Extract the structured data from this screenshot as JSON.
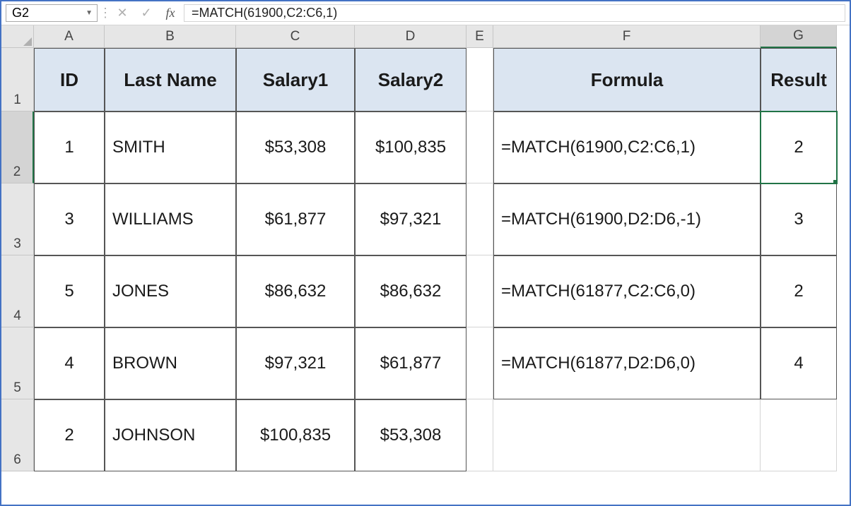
{
  "formula_bar": {
    "name_box_value": "G2",
    "cancel_glyph": "✕",
    "enter_glyph": "✓",
    "fx_label": "fx",
    "sep_glyph": "⋮",
    "formula_text": "=MATCH(61900,C2:C6,1)"
  },
  "columns": [
    "A",
    "B",
    "C",
    "D",
    "E",
    "F",
    "G"
  ],
  "rows": [
    "1",
    "2",
    "3",
    "4",
    "5",
    "6"
  ],
  "selected_cell": "G2",
  "colors": {
    "header_fill": "#dbe5f1",
    "grid_line": "#d4d4d4",
    "heading_bg": "#e6e6e6",
    "selection": "#217346",
    "frame": "#4472c4"
  },
  "table": {
    "headers": {
      "A": "ID",
      "B": "Last Name",
      "C": "Salary1",
      "D": "Salary2",
      "F": "Formula",
      "G": "Result"
    },
    "data": [
      {
        "id": "1",
        "last": "SMITH",
        "s1": "$53,308",
        "s2": "$100,835",
        "formula": "=MATCH(61900,C2:C6,1)",
        "result": "2"
      },
      {
        "id": "3",
        "last": "WILLIAMS",
        "s1": "$61,877",
        "s2": "$97,321",
        "formula": "=MATCH(61900,D2:D6,-1)",
        "result": "3"
      },
      {
        "id": "5",
        "last": "JONES",
        "s1": "$86,632",
        "s2": "$86,632",
        "formula": "=MATCH(61877,C2:C6,0)",
        "result": "2"
      },
      {
        "id": "4",
        "last": "BROWN",
        "s1": "$97,321",
        "s2": "$61,877",
        "formula": "=MATCH(61877,D2:D6,0)",
        "result": "4"
      },
      {
        "id": "2",
        "last": "JOHNSON",
        "s1": "$100,835",
        "s2": "$53,308",
        "formula": "",
        "result": ""
      }
    ]
  }
}
